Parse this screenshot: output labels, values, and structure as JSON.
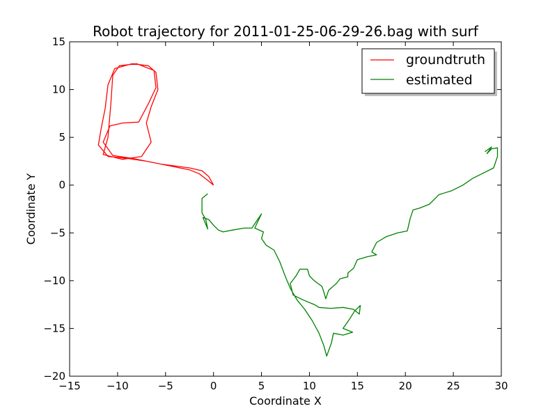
{
  "chart_data": {
    "type": "line",
    "title": "Robot trajectory for 2011-01-25-06-29-26.bag with surf",
    "xlabel": "Coordinate X",
    "ylabel": "Coordinate Y",
    "xlim": [
      -15,
      30
    ],
    "ylim": [
      -20,
      15
    ],
    "xticks": [
      -15,
      -10,
      -5,
      0,
      5,
      10,
      15,
      20,
      25,
      30
    ],
    "yticks": [
      -20,
      -15,
      -10,
      -5,
      0,
      5,
      10,
      15
    ],
    "grid": false,
    "legend_position": "top-right",
    "series": [
      {
        "name": "groundtruth",
        "color": "#ff0000",
        "points": [
          [
            0.0,
            0.0
          ],
          [
            -0.5,
            0.9
          ],
          [
            -1.2,
            1.5
          ],
          [
            -2.5,
            1.8
          ],
          [
            -4.0,
            2.0
          ],
          [
            -5.5,
            2.2
          ],
          [
            -7.0,
            2.5
          ],
          [
            -9.0,
            2.8
          ],
          [
            -11.0,
            3.0
          ],
          [
            -12.0,
            4.2
          ],
          [
            -11.7,
            6.0
          ],
          [
            -11.3,
            8.0
          ],
          [
            -11.0,
            10.5
          ],
          [
            -10.3,
            12.2
          ],
          [
            -8.5,
            12.7
          ],
          [
            -6.8,
            12.5
          ],
          [
            -6.0,
            11.8
          ],
          [
            -5.8,
            10.0
          ],
          [
            -6.5,
            8.2
          ],
          [
            -7.0,
            6.5
          ],
          [
            -6.5,
            4.5
          ],
          [
            -7.5,
            3.0
          ],
          [
            -9.5,
            2.7
          ],
          [
            -11.5,
            3.2
          ],
          [
            -11.0,
            5.0
          ],
          [
            -10.7,
            8.5
          ],
          [
            -10.5,
            11.5
          ],
          [
            -9.8,
            12.5
          ],
          [
            -8.0,
            12.7
          ],
          [
            -6.2,
            12.0
          ],
          [
            -6.0,
            10.2
          ],
          [
            -6.8,
            8.5
          ],
          [
            -7.8,
            6.6
          ],
          [
            -9.5,
            6.5
          ],
          [
            -10.8,
            6.2
          ],
          [
            -11.5,
            4.5
          ],
          [
            -10.5,
            3.1
          ],
          [
            -8.5,
            2.8
          ],
          [
            -6.5,
            2.4
          ],
          [
            -4.5,
            2.0
          ],
          [
            -2.5,
            1.6
          ],
          [
            -1.5,
            1.2
          ],
          [
            -0.6,
            0.5
          ],
          [
            0.0,
            0.0
          ]
        ]
      },
      {
        "name": "estimated",
        "color": "#008000",
        "points": [
          [
            -0.6,
            -0.9
          ],
          [
            -1.2,
            -1.4
          ],
          [
            -1.2,
            -2.9
          ],
          [
            -0.8,
            -3.6
          ],
          [
            -0.6,
            -4.6
          ],
          [
            -1.1,
            -3.4
          ],
          [
            -0.5,
            -3.6
          ],
          [
            0.0,
            -4.2
          ],
          [
            0.5,
            -4.7
          ],
          [
            1.0,
            -4.9
          ],
          [
            2.0,
            -4.7
          ],
          [
            3.2,
            -4.5
          ],
          [
            4.0,
            -4.5
          ],
          [
            5.0,
            -3.0
          ],
          [
            4.3,
            -4.5
          ],
          [
            5.2,
            -4.9
          ],
          [
            5.0,
            -5.6
          ],
          [
            5.5,
            -6.3
          ],
          [
            6.3,
            -6.8
          ],
          [
            6.9,
            -8.0
          ],
          [
            7.5,
            -9.6
          ],
          [
            8.0,
            -10.8
          ],
          [
            8.7,
            -12.0
          ],
          [
            9.5,
            -13.0
          ],
          [
            10.3,
            -14.2
          ],
          [
            11.0,
            -15.5
          ],
          [
            11.5,
            -16.8
          ],
          [
            11.8,
            -17.9
          ],
          [
            12.3,
            -16.5
          ],
          [
            12.5,
            -15.5
          ],
          [
            13.5,
            -15.7
          ],
          [
            14.5,
            -15.4
          ],
          [
            13.5,
            -15.0
          ],
          [
            14.2,
            -14.0
          ],
          [
            14.7,
            -13.2
          ],
          [
            15.3,
            -12.6
          ],
          [
            15.2,
            -13.5
          ],
          [
            14.6,
            -13.0
          ],
          [
            13.5,
            -12.8
          ],
          [
            12.2,
            -12.9
          ],
          [
            11.0,
            -12.8
          ],
          [
            10.5,
            -12.5
          ],
          [
            9.3,
            -12.0
          ],
          [
            8.3,
            -11.5
          ],
          [
            8.0,
            -10.3
          ],
          [
            8.6,
            -9.5
          ],
          [
            9.0,
            -8.8
          ],
          [
            9.8,
            -8.8
          ],
          [
            10.0,
            -9.5
          ],
          [
            10.5,
            -10.0
          ],
          [
            11.3,
            -10.6
          ],
          [
            11.5,
            -11.2
          ],
          [
            11.7,
            -11.9
          ],
          [
            12.0,
            -11.0
          ],
          [
            12.8,
            -10.3
          ],
          [
            13.2,
            -9.8
          ],
          [
            14.0,
            -9.6
          ],
          [
            14.0,
            -9.2
          ],
          [
            14.6,
            -8.7
          ],
          [
            15.0,
            -7.8
          ],
          [
            16.0,
            -7.5
          ],
          [
            17.0,
            -7.3
          ],
          [
            16.5,
            -7.0
          ],
          [
            17.0,
            -6.0
          ],
          [
            18.0,
            -5.4
          ],
          [
            19.2,
            -5.0
          ],
          [
            20.2,
            -4.8
          ],
          [
            20.5,
            -3.5
          ],
          [
            20.8,
            -2.6
          ],
          [
            21.5,
            -2.4
          ],
          [
            22.5,
            -2.0
          ],
          [
            23.0,
            -1.5
          ],
          [
            23.5,
            -1.0
          ],
          [
            24.8,
            -0.6
          ],
          [
            26.0,
            0.0
          ],
          [
            27.0,
            0.7
          ],
          [
            28.0,
            1.2
          ],
          [
            29.2,
            1.8
          ],
          [
            29.6,
            3.0
          ],
          [
            29.6,
            3.9
          ],
          [
            29.0,
            3.8
          ],
          [
            28.5,
            3.3
          ],
          [
            29.0,
            4.0
          ],
          [
            28.3,
            3.5
          ]
        ]
      }
    ]
  }
}
